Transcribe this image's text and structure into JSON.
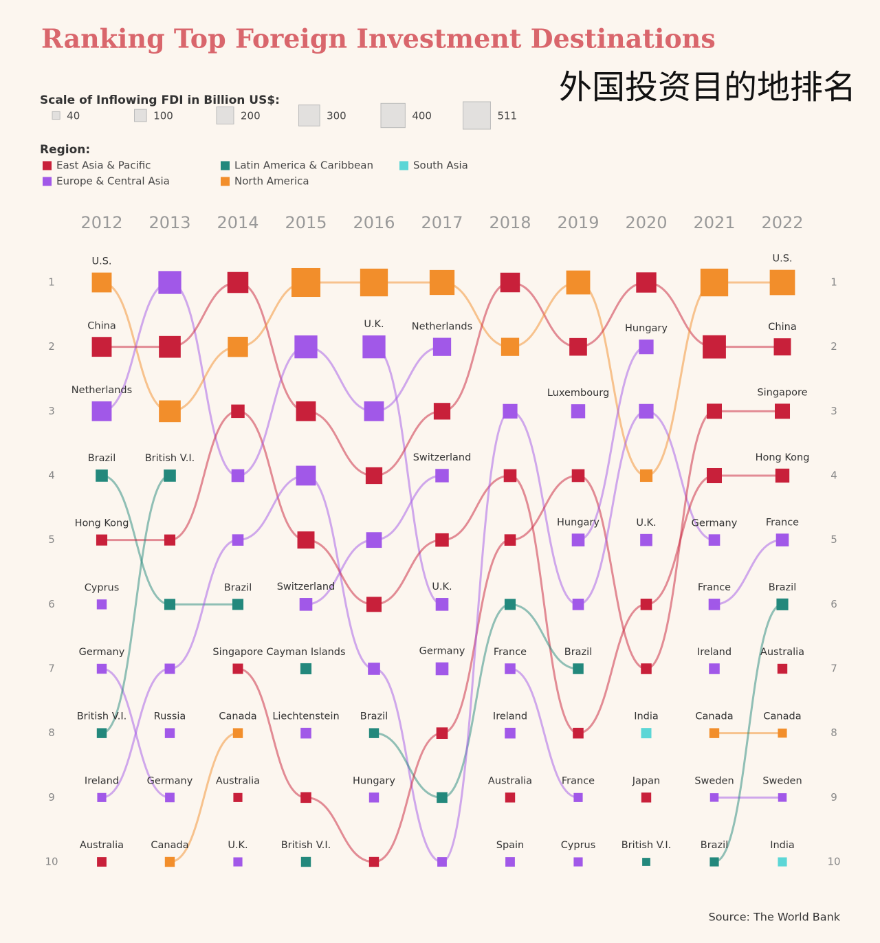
{
  "chart_data": {
    "type": "bump",
    "title": "Ranking Top Foreign Investment Destinations",
    "subtitle": "外国投资目的地排名",
    "size_legend_title": "Scale of Inflowing FDI in Billion US$:",
    "size_legend": [
      40,
      100,
      200,
      300,
      400,
      511
    ],
    "region_legend_title": "Region:",
    "regions": [
      {
        "name": "East Asia & Pacific",
        "color": "#c8203a"
      },
      {
        "name": "Europe & Central Asia",
        "color": "#a158e8"
      },
      {
        "name": "Latin America & Caribbean",
        "color": "#23887c"
      },
      {
        "name": "North America",
        "color": "#f28e2b"
      },
      {
        "name": "South Asia",
        "color": "#5cd6d6"
      }
    ],
    "x": [
      "2012",
      "2013",
      "2014",
      "2015",
      "2016",
      "2017",
      "2018",
      "2019",
      "2020",
      "2021",
      "2022"
    ],
    "ylim": [
      1,
      10
    ],
    "yticks": [
      1,
      2,
      3,
      4,
      5,
      6,
      7,
      8,
      9,
      10
    ],
    "source": "Source: The World Bank",
    "nodes": [
      [
        {
          "label": "U.S.",
          "region": 3,
          "value": 240,
          "next": 3
        },
        {
          "label": "China",
          "region": 0,
          "value": 240,
          "next": 2
        },
        {
          "label": "Netherlands",
          "region": 1,
          "value": 240,
          "next": 1
        },
        {
          "label": "Brazil",
          "region": 2,
          "value": 90,
          "next": 6
        },
        {
          "label": "Hong Kong",
          "region": 0,
          "value": 75,
          "next": 5
        },
        {
          "label": "Cyprus",
          "region": 1,
          "value": 60,
          "next": null
        },
        {
          "label": "Germany",
          "region": 1,
          "value": 60,
          "next": 9
        },
        {
          "label": "British V.I.",
          "region": 2,
          "value": 60,
          "next": 4
        },
        {
          "label": "Ireland",
          "region": 1,
          "value": 50,
          "next": 7
        },
        {
          "label": "Australia",
          "region": 0,
          "value": 55,
          "next": null
        }
      ],
      [
        {
          "label": null,
          "region": 1,
          "value": 320,
          "next": 4
        },
        {
          "label": null,
          "region": 0,
          "value": 290,
          "next": 1
        },
        {
          "label": null,
          "region": 3,
          "value": 290,
          "next": 2
        },
        {
          "label": "British V.I.",
          "region": 2,
          "value": 90,
          "next": null
        },
        {
          "label": null,
          "region": 0,
          "value": 75,
          "next": 3
        },
        {
          "label": null,
          "region": 2,
          "value": 75,
          "next": 6
        },
        {
          "label": null,
          "region": 1,
          "value": 65,
          "next": 5
        },
        {
          "label": "Russia",
          "region": 1,
          "value": 60,
          "next": null
        },
        {
          "label": "Germany",
          "region": 1,
          "value": 55,
          "next": null
        },
        {
          "label": "Canada",
          "region": 3,
          "value": 60,
          "next": 8
        }
      ],
      [
        {
          "label": null,
          "region": 0,
          "value": 270,
          "next": 3
        },
        {
          "label": null,
          "region": 3,
          "value": 250,
          "next": 1
        },
        {
          "label": null,
          "region": 0,
          "value": 110,
          "next": 5
        },
        {
          "label": null,
          "region": 1,
          "value": 100,
          "next": 2
        },
        {
          "label": null,
          "region": 1,
          "value": 80,
          "next": 4
        },
        {
          "label": "Brazil",
          "region": 2,
          "value": 75,
          "next": null
        },
        {
          "label": "Singapore",
          "region": 0,
          "value": 65,
          "next": 9
        },
        {
          "label": "Canada",
          "region": 3,
          "value": 60,
          "next": null
        },
        {
          "label": "Australia",
          "region": 0,
          "value": 50,
          "next": null
        },
        {
          "label": "U.K.",
          "region": 1,
          "value": 50,
          "next": null
        }
      ],
      [
        {
          "label": null,
          "region": 3,
          "value": 511,
          "next": 1
        },
        {
          "label": null,
          "region": 1,
          "value": 320,
          "next": 3
        },
        {
          "label": null,
          "region": 0,
          "value": 240,
          "next": 4
        },
        {
          "label": null,
          "region": 1,
          "value": 240,
          "next": 7
        },
        {
          "label": null,
          "region": 0,
          "value": 180,
          "next": 6
        },
        {
          "label": "Switzerland",
          "region": 1,
          "value": 100,
          "next": 5
        },
        {
          "label": "Cayman Islands",
          "region": 2,
          "value": 75,
          "next": null
        },
        {
          "label": "Liechtenstein",
          "region": 1,
          "value": 70,
          "next": null
        },
        {
          "label": null,
          "region": 0,
          "value": 70,
          "next": 10
        },
        {
          "label": "British V.I.",
          "region": 2,
          "value": 60,
          "next": null
        }
      ],
      [
        {
          "label": null,
          "region": 3,
          "value": 470,
          "next": 1
        },
        {
          "label": "U.K.",
          "region": 1,
          "value": 320,
          "next": 6
        },
        {
          "label": null,
          "region": 1,
          "value": 240,
          "next": 2
        },
        {
          "label": null,
          "region": 0,
          "value": 170,
          "next": 3
        },
        {
          "label": null,
          "region": 1,
          "value": 150,
          "next": 4
        },
        {
          "label": null,
          "region": 0,
          "value": 140,
          "next": 5
        },
        {
          "label": null,
          "region": 1,
          "value": 90,
          "next": 10
        },
        {
          "label": "Brazil",
          "region": 2,
          "value": 60,
          "next": 9
        },
        {
          "label": "Hungary",
          "region": 1,
          "value": 60,
          "next": null
        },
        {
          "label": null,
          "region": 0,
          "value": 60,
          "next": 8
        }
      ],
      [
        {
          "label": null,
          "region": 3,
          "value": 380,
          "next": 2
        },
        {
          "label": "Netherlands",
          "region": 1,
          "value": 200,
          "next": null
        },
        {
          "label": null,
          "region": 0,
          "value": 170,
          "next": 1
        },
        {
          "label": "Switzerland",
          "region": 1,
          "value": 110,
          "next": null
        },
        {
          "label": null,
          "region": 0,
          "value": 110,
          "next": 4
        },
        {
          "label": "U.K.",
          "region": 1,
          "value": 100,
          "next": null
        },
        {
          "label": "Germany",
          "region": 1,
          "value": 100,
          "next": null
        },
        {
          "label": null,
          "region": 0,
          "value": 80,
          "next": 5
        },
        {
          "label": null,
          "region": 2,
          "value": 70,
          "next": 6
        },
        {
          "label": null,
          "region": 1,
          "value": 55,
          "next": 3
        }
      ],
      [
        {
          "label": null,
          "region": 0,
          "value": 235,
          "next": 2
        },
        {
          "label": null,
          "region": 3,
          "value": 200,
          "next": 1
        },
        {
          "label": null,
          "region": 1,
          "value": 130,
          "next": 6
        },
        {
          "label": null,
          "region": 0,
          "value": 100,
          "next": 8
        },
        {
          "label": null,
          "region": 0,
          "value": 80,
          "next": 4
        },
        {
          "label": null,
          "region": 2,
          "value": 75,
          "next": 7
        },
        {
          "label": "France",
          "region": 1,
          "value": 70,
          "next": 9
        },
        {
          "label": "Ireland",
          "region": 1,
          "value": 70,
          "next": null
        },
        {
          "label": "Australia",
          "region": 0,
          "value": 60,
          "next": null
        },
        {
          "label": "Spain",
          "region": 1,
          "value": 55,
          "next": null
        }
      ],
      [
        {
          "label": null,
          "region": 3,
          "value": 350,
          "next": 4
        },
        {
          "label": null,
          "region": 0,
          "value": 190,
          "next": 1
        },
        {
          "label": "Luxembourg",
          "region": 1,
          "value": 120,
          "next": null
        },
        {
          "label": null,
          "region": 0,
          "value": 100,
          "next": 7
        },
        {
          "label": "Hungary",
          "region": 1,
          "value": 100,
          "next": 2
        },
        {
          "label": null,
          "region": 1,
          "value": 80,
          "next": 3
        },
        {
          "label": "Brazil",
          "region": 2,
          "value": 70,
          "next": null
        },
        {
          "label": null,
          "region": 0,
          "value": 70,
          "next": 6
        },
        {
          "label": "France",
          "region": 1,
          "value": 50,
          "next": null
        },
        {
          "label": "Cyprus",
          "region": 1,
          "value": 50,
          "next": null
        }
      ],
      [
        {
          "label": null,
          "region": 0,
          "value": 250,
          "next": 2
        },
        {
          "label": "Hungary",
          "region": 1,
          "value": 130,
          "next": null
        },
        {
          "label": null,
          "region": 1,
          "value": 130,
          "next": 5
        },
        {
          "label": null,
          "region": 3,
          "value": 95,
          "next": 1
        },
        {
          "label": "U.K.",
          "region": 1,
          "value": 90,
          "next": null
        },
        {
          "label": null,
          "region": 0,
          "value": 80,
          "next": 4
        },
        {
          "label": null,
          "region": 0,
          "value": 70,
          "next": 3
        },
        {
          "label": "India",
          "region": 4,
          "value": 65,
          "next": null
        },
        {
          "label": "Japan",
          "region": 0,
          "value": 60,
          "next": null
        },
        {
          "label": "British V.I.",
          "region": 2,
          "value": 40,
          "next": null
        }
      ],
      [
        {
          "label": null,
          "region": 3,
          "value": 470,
          "next": 1
        },
        {
          "label": null,
          "region": 0,
          "value": 330,
          "next": 2
        },
        {
          "label": null,
          "region": 0,
          "value": 140,
          "next": 3
        },
        {
          "label": null,
          "region": 0,
          "value": 140,
          "next": 4
        },
        {
          "label": "Germany",
          "region": 1,
          "value": 80,
          "next": null
        },
        {
          "label": "France",
          "region": 1,
          "value": 80,
          "next": 5
        },
        {
          "label": "Ireland",
          "region": 1,
          "value": 70,
          "next": null
        },
        {
          "label": "Canada",
          "region": 3,
          "value": 60,
          "next": 8
        },
        {
          "label": "Sweden",
          "region": 1,
          "value": 45,
          "next": 9
        },
        {
          "label": "Brazil",
          "region": 2,
          "value": 50,
          "next": 6
        }
      ],
      [
        {
          "label": "U.S.",
          "region": 3,
          "value": 390,
          "next": null
        },
        {
          "label": "China",
          "region": 0,
          "value": 180,
          "next": null
        },
        {
          "label": "Singapore",
          "region": 0,
          "value": 140,
          "next": null
        },
        {
          "label": "Hong Kong",
          "region": 0,
          "value": 120,
          "next": null
        },
        {
          "label": "France",
          "region": 1,
          "value": 100,
          "next": null
        },
        {
          "label": "Brazil",
          "region": 2,
          "value": 85,
          "next": null
        },
        {
          "label": "Australia",
          "region": 0,
          "value": 60,
          "next": null
        },
        {
          "label": "Canada",
          "region": 3,
          "value": 50,
          "next": null
        },
        {
          "label": "Sweden",
          "region": 1,
          "value": 45,
          "next": null
        },
        {
          "label": "India",
          "region": 4,
          "value": 50,
          "next": null
        }
      ]
    ]
  }
}
